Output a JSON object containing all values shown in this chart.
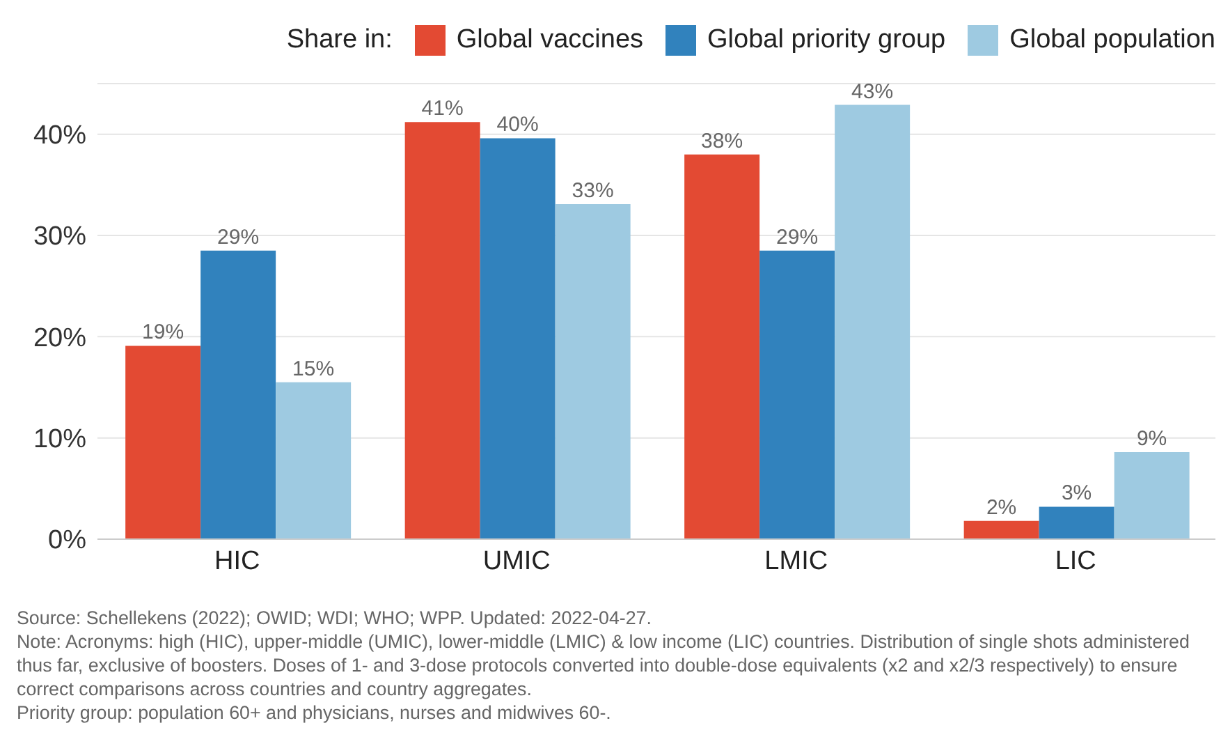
{
  "chart_data": {
    "type": "bar",
    "legend_title": "Share in:",
    "categories": [
      "HIC",
      "UMIC",
      "LMIC",
      "LIC"
    ],
    "series": [
      {
        "name": "Global vaccines",
        "color": "#e34a33",
        "values": [
          19.1,
          41.2,
          38.0,
          1.8
        ],
        "value_labels": [
          "19%",
          "41%",
          "38%",
          "2%"
        ]
      },
      {
        "name": "Global priority group",
        "color": "#3182bd",
        "values": [
          28.5,
          39.6,
          28.5,
          3.2
        ],
        "value_labels": [
          "29%",
          "40%",
          "29%",
          "3%"
        ]
      },
      {
        "name": "Global population",
        "color": "#9ecae1",
        "values": [
          15.5,
          33.1,
          42.9,
          8.6
        ],
        "value_labels": [
          "15%",
          "33%",
          "43%",
          "9%"
        ]
      }
    ],
    "ylim": [
      0,
      45
    ],
    "yticks": [
      {
        "value": 0,
        "label": "0%"
      },
      {
        "value": 10,
        "label": "10%"
      },
      {
        "value": 20,
        "label": "20%"
      },
      {
        "value": 30,
        "label": "30%"
      },
      {
        "value": 40,
        "label": "40%"
      }
    ],
    "grid": "y",
    "legend": "top",
    "annotations": [
      "Source: Schellekens (2022); OWID; WDI; WHO; WPP. Updated: 2022-04-27.",
      "Note: Acronyms: high (HIC), upper-middle (UMIC), lower-middle (LMIC) & low income (LIC) countries. Distribution of single shots administered thus far, exclusive of boosters. Doses of 1- and 3-dose protocols converted into double-dose equivalents (x2 and x2/3 respectively) to ensure correct comparisons across countries and country aggregates.",
      "Priority group: population 60+ and physicians, nurses and midwives 60-."
    ]
  }
}
